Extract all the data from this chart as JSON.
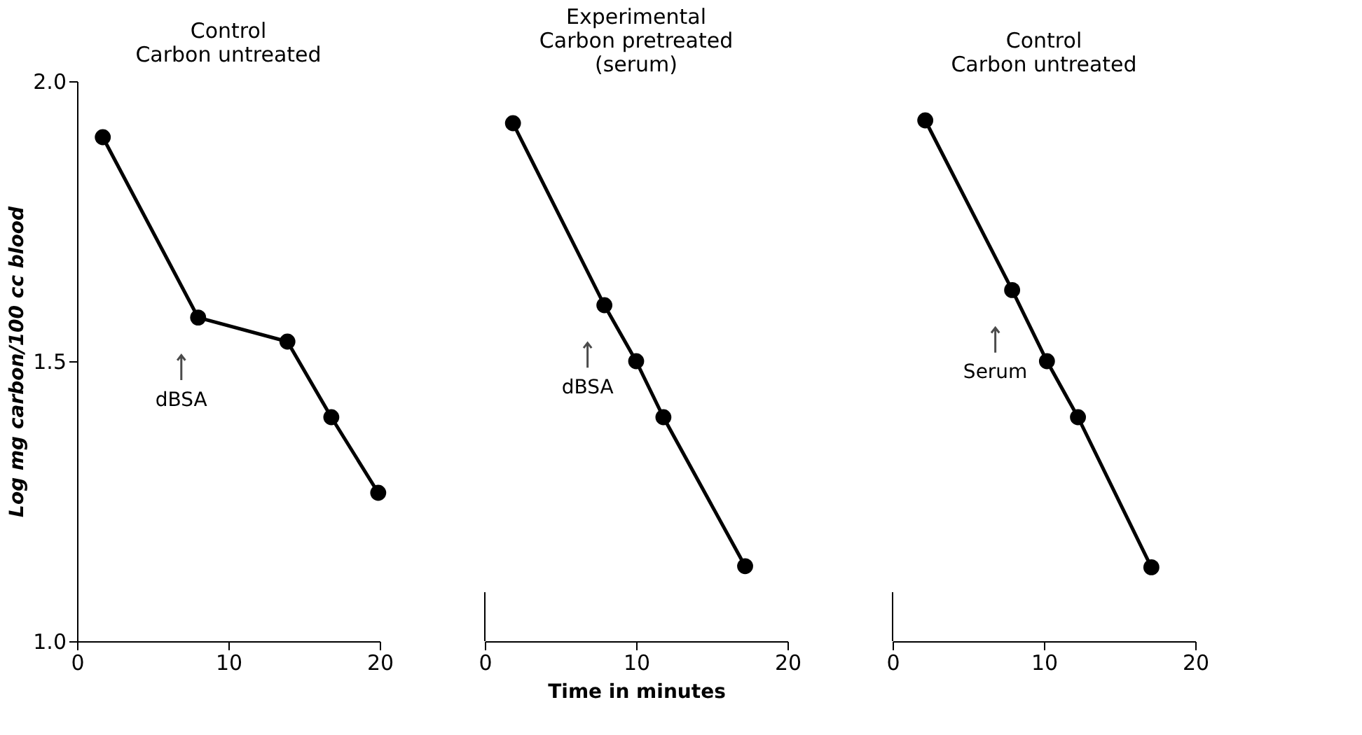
{
  "chart_data": [
    {
      "type": "line",
      "title": "Control\nCarbon untreated",
      "ylabel": "Log mg carbon/100 cc blood",
      "x": [
        1.7,
        8.0,
        13.9,
        16.8,
        19.9
      ],
      "values": [
        1.9,
        1.578,
        1.535,
        1.4,
        1.265
      ],
      "color": "#000000",
      "marker": "circle",
      "line_style": "solid",
      "xlim": [
        0,
        20
      ],
      "xticks": [
        0,
        10,
        20
      ],
      "ylim": [
        1.0,
        2.0
      ],
      "yticks": [
        {
          "value": 1.0,
          "label": "1.0"
        },
        1.5,
        {
          "value": 2.0,
          "label": "2.0"
        }
      ],
      "grid": false,
      "annotations": [
        "dBSA"
      ]
    },
    {
      "type": "line",
      "title": "Experimental\nCarbon pretreated\n(serum)",
      "xlabel": "Time in minutes",
      "x": [
        1.86,
        7.9,
        10.0,
        11.8,
        17.2
      ],
      "values": [
        1.925,
        1.6,
        1.5,
        1.4,
        1.134
      ],
      "color": "#000000",
      "marker": "circle",
      "line_style": "solid",
      "xlim": [
        0,
        20
      ],
      "xticks": [
        0,
        10,
        20
      ],
      "ylim": [
        1.0,
        2.0
      ],
      "tick_labels": "x",
      "grid": false,
      "annotations": [
        "dBSA"
      ]
    },
    {
      "type": "line",
      "title": "Control\nCarbon untreated",
      "x": [
        2.16,
        7.9,
        10.2,
        12.25,
        17.1
      ],
      "values": [
        1.93,
        1.627,
        1.5,
        1.4,
        1.132
      ],
      "color": "#000000",
      "marker": "circle",
      "line_style": "solid",
      "xlim": [
        0,
        20
      ],
      "xticks": [
        0,
        10,
        20
      ],
      "ylim": [
        1.0,
        2.0
      ],
      "tick_labels": "x",
      "grid": false,
      "annotations": [
        "Serum"
      ]
    }
  ]
}
